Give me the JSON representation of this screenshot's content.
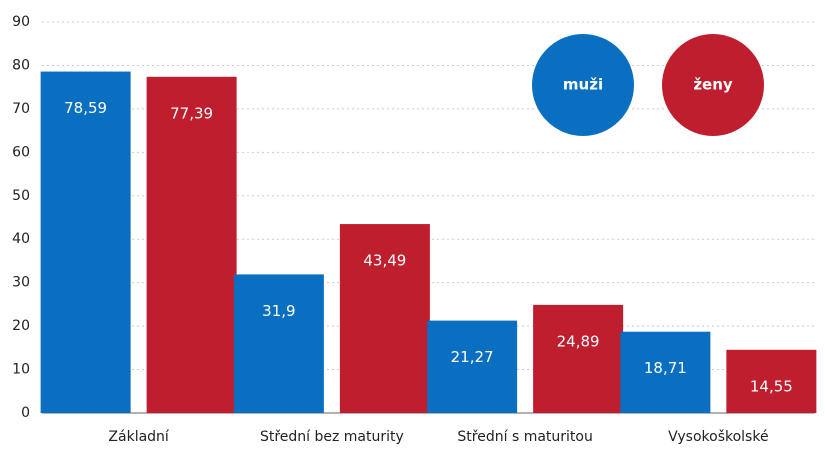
{
  "chart_data": {
    "type": "bar",
    "categories": [
      "Základní",
      "Střední bez maturity",
      "Střední s maturitou",
      "Vysokoškolské"
    ],
    "series": [
      {
        "name": "muži",
        "color": "#0a6fc0",
        "values": [
          78.59,
          31.9,
          21.27,
          18.71
        ],
        "value_labels": [
          "78,59",
          "31,9",
          "21,27",
          "18,71"
        ]
      },
      {
        "name": "ženy",
        "color": "#be1e2d",
        "values": [
          77.39,
          43.49,
          24.89,
          14.55
        ],
        "value_labels": [
          "77,39",
          "43,49",
          "24,89",
          "14,55"
        ]
      }
    ],
    "ylim": [
      0,
      90
    ],
    "yticks": [
      0,
      10,
      20,
      30,
      40,
      50,
      60,
      70,
      80,
      90
    ],
    "grid": true,
    "legend": "upper right"
  }
}
